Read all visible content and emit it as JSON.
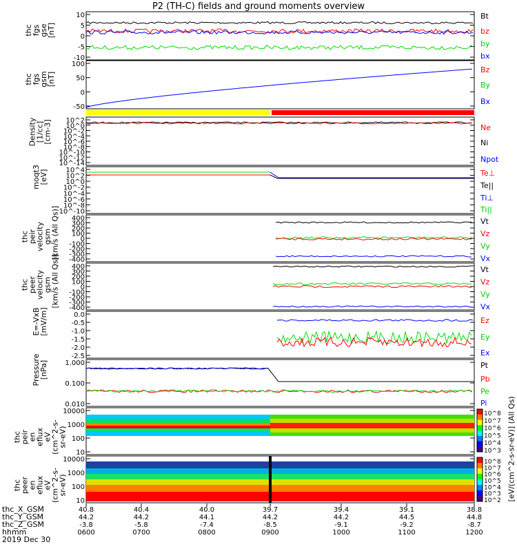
{
  "title": "P2 (TH-C) fields and ground moments overview",
  "colors": {
    "black": "#000000",
    "red": "#ff0000",
    "green": "#00dd00",
    "blue": "#0000ff",
    "yellow": "#ffff00"
  },
  "chart_data": [
    {
      "type": "line",
      "panel": "fgs",
      "ylabel": "thc\nfgs\ngse\n[nT]",
      "ylim": [
        -10,
        10
      ],
      "yticks": [
        10,
        5,
        0,
        -5,
        -10
      ],
      "series": [
        {
          "name": "Bt",
          "color": "#000000"
        },
        {
          "name": "bz",
          "color": "#ff0000"
        },
        {
          "name": "by",
          "color": "#00dd00"
        },
        {
          "name": "bx",
          "color": "#0000ff"
        }
      ]
    },
    {
      "type": "line",
      "panel": "fgs-gsm",
      "ylabel": "thc\nfgs\ngsm\n[nT]",
      "ylim": [
        -75,
        110
      ],
      "yticks": [
        100,
        50,
        0,
        -50
      ],
      "series": [
        {
          "name": "Bz",
          "color": "#ff0000"
        },
        {
          "name": "By",
          "color": "#00dd00"
        },
        {
          "name": "Bx",
          "color": "#0000ff"
        }
      ]
    },
    {
      "type": "line",
      "panel": "density",
      "ylabel": "Density\n[1/cc]\n[cm-3]",
      "yscale": "log",
      "yticks": [
        "10^2",
        "10^0",
        "10^-2",
        "10^-4",
        "10^-6",
        "10^-8",
        "10^-10",
        "10^-12",
        "10^-14"
      ],
      "series": [
        {
          "name": "Ne",
          "color": "#ff0000"
        },
        {
          "name": "Ni",
          "color": "#000000"
        },
        {
          "name": "Npot",
          "color": "#0000ff"
        }
      ]
    },
    {
      "type": "line",
      "panel": "temperature",
      "ylabel": "moqt3\n[eV]",
      "yscale": "log",
      "yticks": [
        "10^4",
        "10^2",
        "10^0",
        "10^-2",
        "10^-4",
        "10^-6",
        "10^-8",
        "10^-10"
      ],
      "series": [
        {
          "name": "Te⊥",
          "color": "#ff0000"
        },
        {
          "name": "Te||",
          "color": "#000000"
        },
        {
          "name": "Ti⊥",
          "color": "#0000ff"
        },
        {
          "name": "Ti||",
          "color": "#00dd00"
        }
      ]
    },
    {
      "type": "line",
      "panel": "peir-velocity",
      "ylabel": "thc\npeir\nvelocity\ngsm\n[km/s (All Qs)]",
      "ylim": [
        -400,
        400
      ],
      "yticks": [
        400,
        300,
        200,
        100,
        0,
        -100,
        -200,
        -300,
        -400
      ],
      "series": [
        {
          "name": "Vt",
          "color": "#000000"
        },
        {
          "name": "Vz",
          "color": "#ff0000"
        },
        {
          "name": "Vy",
          "color": "#00dd00"
        },
        {
          "name": "Vx",
          "color": "#0000ff"
        }
      ]
    },
    {
      "type": "line",
      "panel": "peer-velocity",
      "ylabel": "thc\npeer\nvelocity\ngsm\n[km/s (All Qs)]",
      "ylim": [
        -400,
        400
      ],
      "yticks": [
        400,
        300,
        200,
        100,
        0,
        -100,
        -200,
        -300,
        -400
      ],
      "series": [
        {
          "name": "Vt",
          "color": "#000000"
        },
        {
          "name": "Vz",
          "color": "#ff0000"
        },
        {
          "name": "Vy",
          "color": "#00dd00"
        },
        {
          "name": "Vx",
          "color": "#0000ff"
        }
      ]
    },
    {
      "type": "line",
      "panel": "efield",
      "ylabel": "E=-VxB\n[mV/m]",
      "ylim": [
        -2.5,
        0.1
      ],
      "yticks": [
        "0.0",
        "-0.5",
        "-1.0",
        "-1.5",
        "-2.0",
        "-2.5"
      ],
      "series": [
        {
          "name": "Ez",
          "color": "#ff0000"
        },
        {
          "name": "Ey",
          "color": "#00dd00"
        },
        {
          "name": "Ex",
          "color": "#0000ff"
        }
      ]
    },
    {
      "type": "line",
      "panel": "pressure",
      "ylabel": "Pressure\n[nPa]",
      "yscale": "log",
      "ylim": [
        0.001,
        1.0
      ],
      "yticks": [
        "1.000",
        "0.100",
        "0.010"
      ],
      "series": [
        {
          "name": "Pt",
          "color": "#000000"
        },
        {
          "name": "Pb",
          "color": "#ff0000"
        },
        {
          "name": "Pe",
          "color": "#00dd00"
        },
        {
          "name": "Pi",
          "color": "#0000ff"
        }
      ]
    },
    {
      "type": "heatmap",
      "panel": "peir-eflux",
      "ylabel": "thc\npeir\nen\neflux\neV\n(cm^2-s-\nsr-eV)",
      "yscale": "log",
      "yticks": [
        "10000",
        "1000",
        "100",
        "10"
      ]
    },
    {
      "type": "heatmap",
      "panel": "peer-eflux",
      "ylabel": "thc\npeer\nen\neflux\neV\n(cm^2-s-\nsr-eV)",
      "yscale": "log",
      "yticks": [
        "10000",
        "1000",
        "100",
        "10"
      ]
    }
  ],
  "colorbar": {
    "label": "[eV/(cm^2-s-sr-eV)] (All Qs)",
    "top_ticks": [
      "10^8",
      "10^7",
      "10^6",
      "10^5",
      "10^4",
      "10^3"
    ],
    "bottom_ticks": [
      "10^8",
      "10^7",
      "10^6",
      "10^5",
      "10^4",
      "10^3",
      "10^2"
    ]
  },
  "xaxis": {
    "rows": [
      {
        "name": "thc_X_GSM",
        "values": [
          "40.8",
          "40.4",
          "40.0",
          "39.7",
          "39.4",
          "39.1",
          "38.8"
        ]
      },
      {
        "name": "thc_Y_GSM",
        "values": [
          "44.2",
          "44.2",
          "44.1",
          "44.2",
          "44.2",
          "44.5",
          "44.8"
        ]
      },
      {
        "name": "thc_Z_GSM",
        "values": [
          "-3.8",
          "-5.8",
          "-7.4",
          "-8.5",
          "-9.1",
          "-9.2",
          "-8.7"
        ]
      },
      {
        "name": "hhmm",
        "values": [
          "0600",
          "0700",
          "0800",
          "0900",
          "1000",
          "1100",
          "1200"
        ]
      }
    ],
    "date": "2019 Dec 30"
  }
}
